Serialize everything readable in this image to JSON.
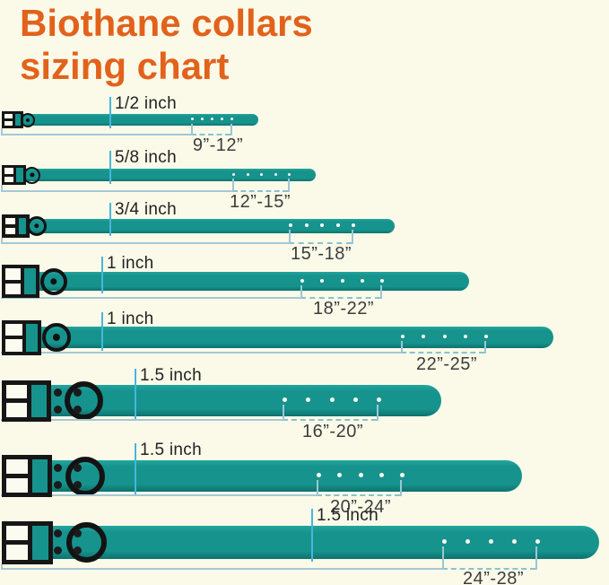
{
  "title": {
    "line1": "Biothane collars",
    "line2": "sizing chart"
  },
  "colors": {
    "background": "#FBFAE9",
    "title_orange": "#E2621C",
    "collar_teal": "#17938D",
    "collar_edge_dark": "#0D726E",
    "buckle_black": "#161616",
    "tick_blue": "#49B5DC",
    "measure_line_blue": "#A5C8D8",
    "label_text": "#222222"
  },
  "rows": [
    {
      "width_label": "1/2 inch",
      "size_label": "9”-12”"
    },
    {
      "width_label": "5/8 inch",
      "size_label": "12”-15”"
    },
    {
      "width_label": "3/4 inch",
      "size_label": "15”-18”"
    },
    {
      "width_label": "1 inch",
      "size_label": "18”-22”"
    },
    {
      "width_label": "1 inch",
      "size_label": "22”-25”"
    },
    {
      "width_label": "1.5 inch",
      "size_label": "16”-20”"
    },
    {
      "width_label": "1.5 inch",
      "size_label": "20”-24”"
    },
    {
      "width_label": "1.5 inch",
      "size_label": "24”-28”"
    }
  ]
}
